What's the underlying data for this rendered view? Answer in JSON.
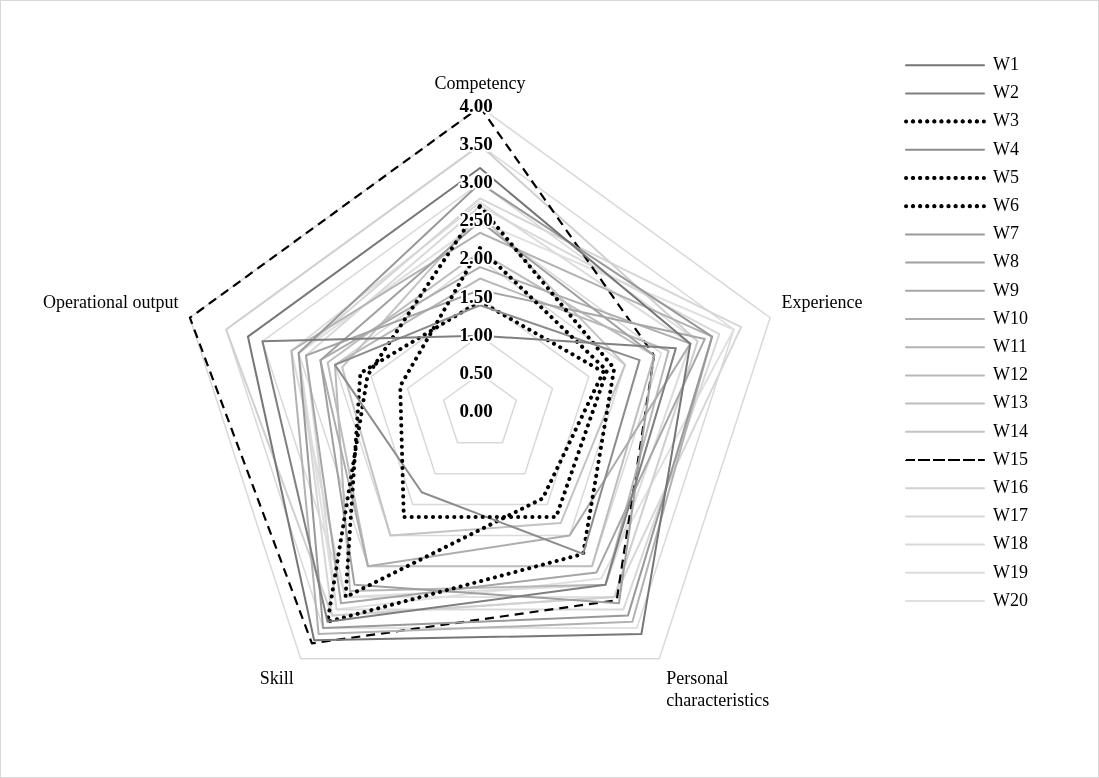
{
  "chart_data": {
    "type": "radar",
    "categories": [
      "Competency",
      "Experience",
      "Personal characteristics",
      "Skill",
      "Operational output"
    ],
    "ylim": [
      0,
      4
    ],
    "yticks": [
      {
        "value": 0,
        "label": "0.00"
      },
      {
        "value": 0.5,
        "label": "0.50"
      },
      {
        "value": 1,
        "label": "1.00"
      },
      {
        "value": 1.5,
        "label": "1.50"
      },
      {
        "value": 2,
        "label": "2.00"
      },
      {
        "value": 2.5,
        "label": "2.50"
      },
      {
        "value": 3,
        "label": "3.00"
      },
      {
        "value": 3.5,
        "label": "3.50"
      },
      {
        "value": 4,
        "label": "4.00"
      }
    ],
    "grid": true,
    "legend": "right",
    "line_style": "solid",
    "series": [
      {
        "name": "W1",
        "color": "#767676",
        "values": [
          3.2,
          2.9,
          3.6,
          3.7,
          3.2
        ]
      },
      {
        "name": "W2",
        "color": "#7f7f7f",
        "values": [
          1.0,
          2.7,
          2.8,
          3.4,
          3.0
        ]
      },
      {
        "name": "W3",
        "color": "#000000",
        "line_style": "dotted",
        "values": [
          2.15,
          1.75,
          1.7,
          1.7,
          1.1
        ]
      },
      {
        "name": "W4",
        "color": "#8c8c8c",
        "values": [
          1.4,
          2.2,
          2.3,
          1.3,
          2.0
        ]
      },
      {
        "name": "W5",
        "color": "#000000",
        "line_style": "dotted",
        "values": [
          2.7,
          1.85,
          2.3,
          3.4,
          1.55
        ]
      },
      {
        "name": "W6",
        "color": "#000000",
        "line_style": "dotted",
        "values": [
          1.45,
          1.7,
          1.4,
          3.0,
          1.65
        ]
      },
      {
        "name": "W7",
        "color": "#999999",
        "values": [
          3.0,
          3.2,
          3.3,
          3.5,
          2.5
        ]
      },
      {
        "name": "W8",
        "color": "#a0a0a0",
        "values": [
          2.5,
          2.4,
          3.1,
          2.8,
          2.2
        ]
      },
      {
        "name": "W9",
        "color": "#a6a6a6",
        "values": [
          1.6,
          3.1,
          2.6,
          3.1,
          2.4
        ]
      },
      {
        "name": "W10",
        "color": "#adadad",
        "values": [
          1.9,
          2.9,
          2.0,
          2.5,
          2.2
        ]
      },
      {
        "name": "W11",
        "color": "#b2b2b2",
        "values": [
          2.35,
          3.2,
          3.4,
          3.6,
          2.6
        ]
      },
      {
        "name": "W12",
        "color": "#b8b8b8",
        "values": [
          1.75,
          2.6,
          2.8,
          2.9,
          2.0
        ]
      },
      {
        "name": "W13",
        "color": "#bdbdbd",
        "values": [
          2.1,
          2.4,
          2.5,
          2.5,
          2.1
        ]
      },
      {
        "name": "W14",
        "color": "#c4c4c4",
        "values": [
          2.6,
          2.0,
          1.8,
          2.0,
          1.9
        ]
      },
      {
        "name": "W15",
        "color": "#000000",
        "line_style": "dashed",
        "values": [
          4.0,
          2.4,
          3.05,
          3.75,
          4.0
        ]
      },
      {
        "name": "W16",
        "color": "#d0d0d0",
        "values": [
          3.5,
          3.0,
          3.0,
          3.3,
          3.5
        ]
      },
      {
        "name": "W17",
        "color": "#d6d6d6",
        "values": [
          2.8,
          3.6,
          3.0,
          3.3,
          2.5
        ]
      },
      {
        "name": "W18",
        "color": "#d9d9d9",
        "values": [
          2.7,
          3.3,
          3.2,
          3.2,
          2.4
        ]
      },
      {
        "name": "W19",
        "color": "#dcdcdc",
        "values": [
          2.75,
          2.9,
          2.8,
          3.0,
          2.6
        ]
      },
      {
        "name": "W20",
        "color": "#e0e0e0",
        "values": [
          2.5,
          3.5,
          2.7,
          3.2,
          2.5
        ]
      }
    ]
  }
}
